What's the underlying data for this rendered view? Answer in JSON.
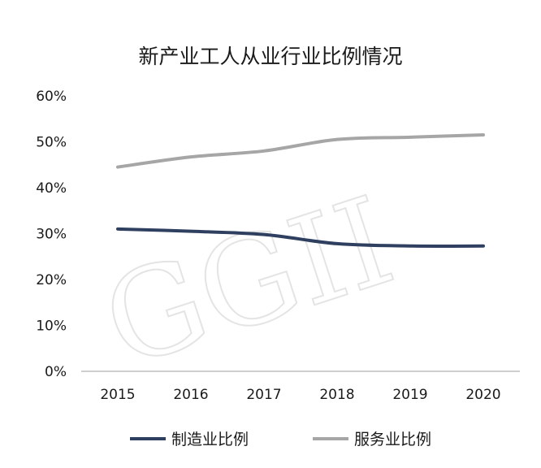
{
  "chart_data": {
    "type": "line",
    "title": "新产业工人从业行业比例情况",
    "watermark": "GGII",
    "categories": [
      "2015",
      "2016",
      "2017",
      "2018",
      "2019",
      "2020"
    ],
    "series": [
      {
        "name": "制造业比例",
        "color": "#2e3f5f",
        "values": [
          0.31,
          0.305,
          0.298,
          0.278,
          0.273,
          0.273
        ]
      },
      {
        "name": "服务业比例",
        "color": "#a6a6a6",
        "values": [
          0.445,
          0.467,
          0.48,
          0.505,
          0.51,
          0.515
        ]
      }
    ],
    "ylim": [
      0,
      0.6
    ],
    "yticks": [
      "0%",
      "10%",
      "20%",
      "30%",
      "40%",
      "50%",
      "60%"
    ],
    "grid": false,
    "legend_position": "bottom"
  }
}
